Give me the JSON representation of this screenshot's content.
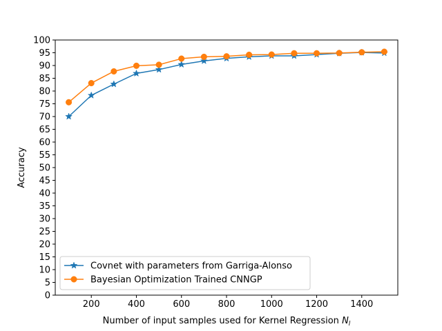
{
  "chart_data": {
    "type": "line",
    "xlabel": "Number of input samples used for Kernel Regression",
    "xlabel_symbol": "N",
    "xlabel_subscript": "l",
    "ylabel": "Accuracy",
    "xlim": [
      40,
      1560
    ],
    "ylim": [
      0,
      100
    ],
    "xticks": [
      200,
      400,
      600,
      800,
      1000,
      1200,
      1400
    ],
    "yticks": [
      0,
      5,
      10,
      15,
      20,
      25,
      30,
      35,
      40,
      45,
      50,
      55,
      60,
      65,
      70,
      75,
      80,
      85,
      90,
      95,
      100
    ],
    "grid": false,
    "legend_position": "lower-left",
    "x": [
      100,
      200,
      300,
      400,
      500,
      600,
      700,
      800,
      900,
      1000,
      1100,
      1200,
      1300,
      1400,
      1500
    ],
    "series": [
      {
        "name": "Covnet with parameters from Garriga-Alonso",
        "marker": "star",
        "color": "#1f77b4",
        "values": [
          70.0,
          78.3,
          82.7,
          86.9,
          88.4,
          90.4,
          91.8,
          92.8,
          93.4,
          93.8,
          93.8,
          94.3,
          94.8,
          95.1,
          94.9
        ]
      },
      {
        "name": "Bayesian Optimization Trained CNNGP",
        "marker": "circle",
        "color": "#ff7f0e",
        "values": [
          75.6,
          83.1,
          87.7,
          89.9,
          90.3,
          92.7,
          93.4,
          93.6,
          94.2,
          94.3,
          94.8,
          94.8,
          94.9,
          95.2,
          95.4
        ]
      }
    ]
  }
}
